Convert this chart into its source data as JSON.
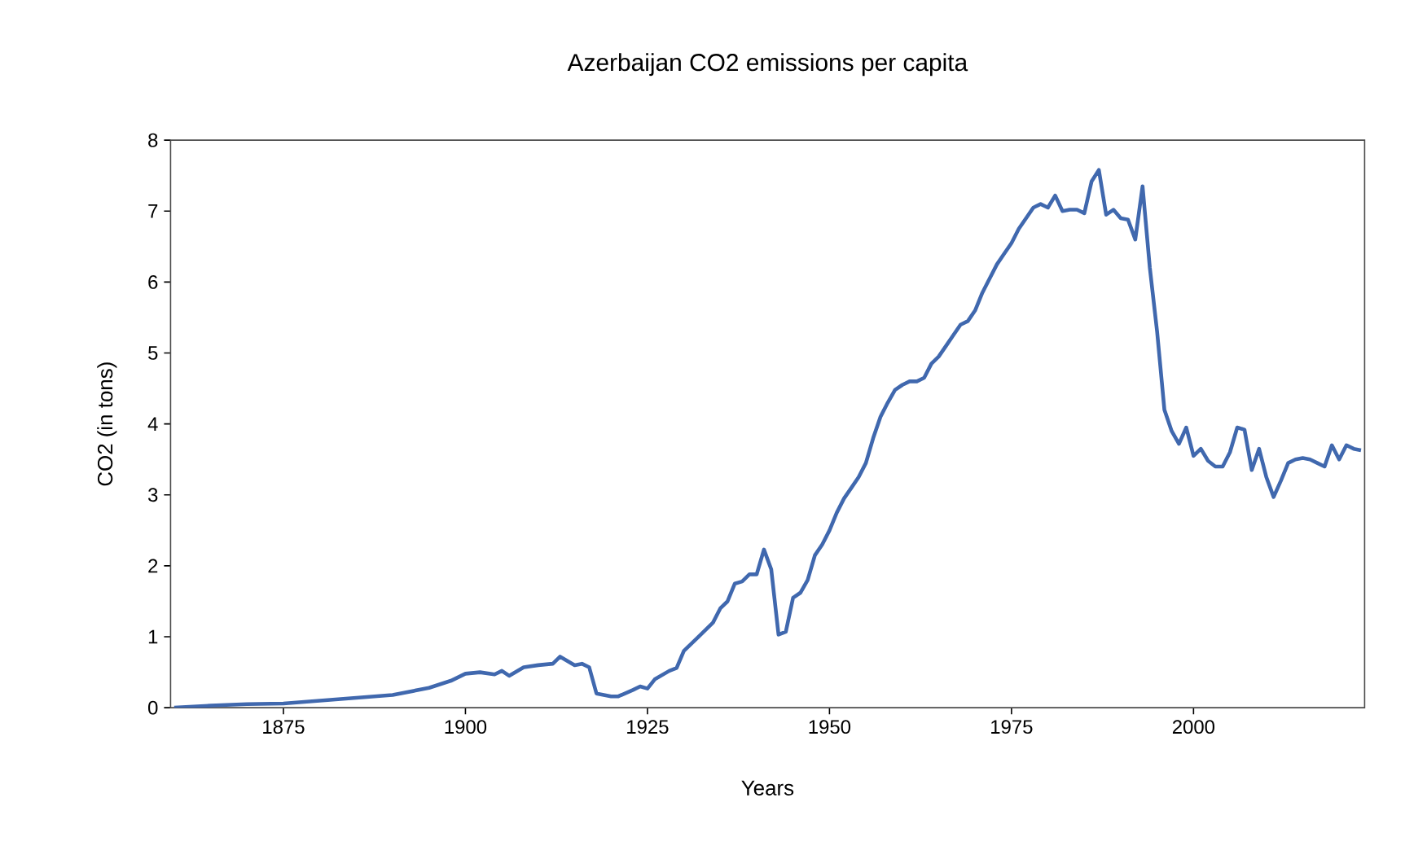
{
  "chart_data": {
    "type": "line",
    "title": "Azerbaijan CO2 emissions per capita",
    "xlabel": "Years",
    "ylabel": "CO2 (in tons)",
    "x": [
      1860,
      1865,
      1870,
      1875,
      1880,
      1885,
      1890,
      1895,
      1898,
      1900,
      1902,
      1904,
      1905,
      1906,
      1908,
      1910,
      1912,
      1913,
      1915,
      1916,
      1917,
      1918,
      1920,
      1921,
      1923,
      1924,
      1925,
      1926,
      1928,
      1929,
      1930,
      1932,
      1934,
      1935,
      1936,
      1937,
      1938,
      1939,
      1940,
      1941,
      1942,
      1943,
      1944,
      1945,
      1946,
      1947,
      1948,
      1949,
      1950,
      1951,
      1952,
      1953,
      1954,
      1955,
      1956,
      1957,
      1958,
      1959,
      1960,
      1961,
      1962,
      1963,
      1964,
      1965,
      1966,
      1967,
      1968,
      1969,
      1970,
      1971,
      1972,
      1973,
      1974,
      1975,
      1976,
      1977,
      1978,
      1979,
      1980,
      1981,
      1982,
      1983,
      1984,
      1985,
      1986,
      1987,
      1988,
      1989,
      1990,
      1991,
      1992,
      1993,
      1994,
      1995,
      1996,
      1997,
      1998,
      1999,
      2000,
      2001,
      2002,
      2003,
      2004,
      2005,
      2006,
      2007,
      2008,
      2009,
      2010,
      2011,
      2012,
      2013,
      2014,
      2015,
      2016,
      2017,
      2018,
      2019,
      2020,
      2021,
      2022,
      2023
    ],
    "values": [
      0,
      0.03,
      0.05,
      0.06,
      0.1,
      0.14,
      0.18,
      0.28,
      0.38,
      0.48,
      0.5,
      0.47,
      0.52,
      0.45,
      0.57,
      0.6,
      0.62,
      0.72,
      0.6,
      0.62,
      0.57,
      0.2,
      0.16,
      0.16,
      0.25,
      0.3,
      0.27,
      0.4,
      0.52,
      0.56,
      0.8,
      1.0,
      1.2,
      1.4,
      1.5,
      1.75,
      1.78,
      1.88,
      1.88,
      2.23,
      1.95,
      1.03,
      1.07,
      1.55,
      1.62,
      1.8,
      2.15,
      2.3,
      2.5,
      2.75,
      2.95,
      3.1,
      3.25,
      3.45,
      3.8,
      4.1,
      4.3,
      4.48,
      4.55,
      4.6,
      4.6,
      4.65,
      4.85,
      4.95,
      5.1,
      5.25,
      5.4,
      5.45,
      5.6,
      5.85,
      6.05,
      6.25,
      6.4,
      6.55,
      6.75,
      6.9,
      7.05,
      7.1,
      7.05,
      7.22,
      7.0,
      7.02,
      7.02,
      6.97,
      7.42,
      7.58,
      6.95,
      7.02,
      6.9,
      6.88,
      6.6,
      7.35,
      6.2,
      5.3,
      4.2,
      3.9,
      3.72,
      3.95,
      3.55,
      3.65,
      3.48,
      3.4,
      3.4,
      3.6,
      3.95,
      3.92,
      3.35,
      3.65,
      3.25,
      2.97,
      3.2,
      3.45,
      3.5,
      3.52,
      3.5,
      3.45,
      3.4,
      3.7,
      3.5,
      3.7,
      3.65,
      3.63
    ],
    "color": "#4068ae",
    "marker": "none",
    "line_style": "solid",
    "xlim": [
      1859.5,
      2023.5
    ],
    "ylim": [
      0,
      8
    ],
    "xticks": [
      1875,
      1900,
      1925,
      1950,
      1975,
      2000
    ],
    "yticks": [
      0,
      1,
      2,
      3,
      4,
      5,
      6,
      7,
      8
    ]
  }
}
